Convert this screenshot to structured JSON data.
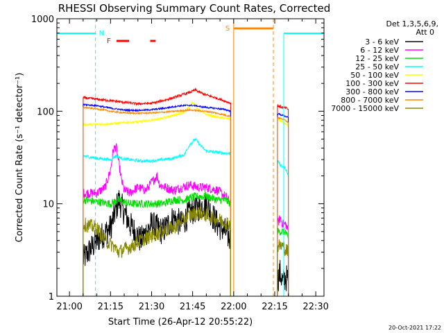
{
  "chart_data": {
    "type": "line",
    "title": "RHESSI Observing Summary Count Rates, Corrected",
    "xlabel": "Start Time (26-Apr-12 20:55:22)",
    "ylabel": "Corrected Count Rate (s⁻¹ detector⁻¹)",
    "y_scale": "log",
    "ylim": [
      1,
      1000
    ],
    "xlim_minutes": [
      55.4,
      153.0
    ],
    "x_ticks": [
      "21:00",
      "21:15",
      "21:30",
      "21:45",
      "22:00",
      "22:15",
      "22:30"
    ],
    "x_tick_minutes": [
      60,
      75,
      90,
      105,
      120,
      135,
      150
    ],
    "y_ticks": [
      "1",
      "10",
      "100",
      "1000"
    ],
    "y_tick_values": [
      1,
      10,
      100,
      1000
    ],
    "legend_header": [
      "Det 1,3,5,6,9,",
      "Att 0"
    ],
    "legend_position": "right",
    "footer_date": "20-Oct-2021 17:22",
    "flags": {
      "N_label": "N",
      "F_label": "F",
      "S_label": "S",
      "N_color": "#00ffff",
      "F_color": "#ff0000",
      "S_color": "#ff8800",
      "night": [
        [
          55.4,
          69.5
        ],
        [
          138.3,
          153.0
        ]
      ],
      "flare_bars": [
        [
          77.2,
          81.8
        ],
        [
          89.5,
          91.5
        ]
      ],
      "saa": [
        120.0,
        134.5
      ],
      "data_gaps": [
        [
          55.4,
          65.0
        ],
        [
          120.0,
          136.0
        ]
      ]
    },
    "series": [
      {
        "name": "3 - 6 keV",
        "color": "#000000",
        "segments": [
          {
            "x": [
              65,
              70,
              75,
              78,
              82,
              86,
              90,
              94,
              98,
              101,
              104,
              107,
              110,
              114,
              117,
              119
            ],
            "y": [
              2.5,
              4,
              5.5,
              11,
              6,
              4,
              6,
              5,
              7,
              6,
              8,
              9,
              10,
              6,
              5,
              4
            ]
          },
          {
            "x": [
              136,
              137,
              138,
              139,
              140
            ],
            "y": [
              1.5,
              1.8,
              1.4,
              1.6,
              1.5
            ]
          }
        ]
      },
      {
        "name": "6 - 12 keV",
        "color": "#ff00ff",
        "segments": [
          {
            "x": [
              65,
              70,
              73,
              75,
              76,
              77,
              78,
              79,
              80,
              82,
              85,
              88,
              90,
              92,
              93,
              95,
              98,
              101,
              104,
              107,
              110,
              114,
              117,
              119
            ],
            "y": [
              13,
              13,
              15,
              23,
              38,
              42,
              28,
              18,
              14,
              13,
              15,
              14,
              17,
              20,
              16,
              15,
              14,
              15,
              16,
              15,
              15,
              14,
              12,
              10
            ]
          },
          {
            "x": [
              136,
              137,
              138,
              139,
              140
            ],
            "y": [
              6,
              7,
              6,
              6,
              5
            ]
          }
        ]
      },
      {
        "name": "12 - 25 keV",
        "color": "#00dd00",
        "segments": [
          {
            "x": [
              65,
              70,
              75,
              78,
              82,
              86,
              90,
              94,
              98,
              102,
              106,
              110,
              114,
              117,
              119
            ],
            "y": [
              11,
              10.5,
              10,
              11,
              10,
              10,
              10,
              10,
              11,
              11,
              12,
              12,
              11,
              11,
              10
            ]
          },
          {
            "x": [
              136,
              137,
              138,
              139,
              140
            ],
            "y": [
              5,
              5,
              5,
              5,
              4
            ]
          }
        ]
      },
      {
        "name": "25 - 50 keV",
        "color": "#00ffff",
        "segments": [
          {
            "x": [
              65,
              70,
              75,
              77,
              79,
              82,
              86,
              90,
              94,
              98,
              102,
              104,
              106,
              108,
              110,
              114,
              117,
              119
            ],
            "y": [
              33,
              31,
              30,
              33,
              31,
              30,
              29,
              29,
              30,
              31,
              34,
              44,
              50,
              42,
              37,
              36,
              35,
              35
            ]
          },
          {
            "x": [
              136,
              137,
              138,
              139,
              140
            ],
            "y": [
              30,
              26,
              25,
              24,
              20
            ]
          }
        ]
      },
      {
        "name": "50 - 100 keV",
        "color": "#ffff00",
        "segments": [
          {
            "x": [
              65,
              70,
              75,
              80,
              85,
              90,
              95,
              98,
              101,
              103,
              105,
              107,
              110,
              114,
              117,
              119
            ],
            "y": [
              72,
              72,
              73,
              75,
              77,
              80,
              85,
              90,
              95,
              105,
              125,
              105,
              92,
              86,
              84,
              82
            ]
          },
          {
            "x": [
              136,
              137,
              138,
              139,
              140
            ],
            "y": [
              85,
              80,
              75,
              73,
              70
            ]
          }
        ]
      },
      {
        "name": "100 - 300 keV",
        "color": "#ff0000",
        "segments": [
          {
            "x": [
              65,
              70,
              75,
              80,
              85,
              90,
              95,
              98,
              101,
              104,
              106,
              108,
              110,
              114,
              117,
              119
            ],
            "y": [
              140,
              135,
              130,
              125,
              120,
              122,
              132,
              140,
              150,
              160,
              170,
              158,
              150,
              138,
              128,
              122
            ]
          },
          {
            "x": [
              136,
              137,
              138,
              139,
              140
            ],
            "y": [
              115,
              112,
              110,
              108,
              105
            ]
          }
        ]
      },
      {
        "name": "300 - 800 keV",
        "color": "#0000ff",
        "segments": [
          {
            "x": [
              65,
              70,
              75,
              80,
              85,
              90,
              95,
              98,
              101,
              104,
              106,
              108,
              110,
              114,
              117,
              119
            ],
            "y": [
              118,
              115,
              108,
              103,
              102,
              104,
              108,
              112,
              115,
              116,
              115,
              112,
              110,
              107,
              104,
              100
            ]
          },
          {
            "x": [
              136,
              137,
              138,
              139,
              140
            ],
            "y": [
              95,
              92,
              90,
              88,
              85
            ]
          }
        ]
      },
      {
        "name": "800 - 7000 keV",
        "color": "#ff8800",
        "segments": [
          {
            "x": [
              65,
              70,
              75,
              80,
              85,
              90,
              95,
              100,
              104,
              108,
              112,
              116,
              119
            ],
            "y": [
              110,
              106,
              100,
              96,
              95,
              96,
              98,
              101,
              103,
              101,
              98,
              92,
              88
            ]
          },
          {
            "x": [
              136,
              137,
              138,
              139,
              140
            ],
            "y": [
              86,
              84,
              82,
              80,
              75
            ]
          }
        ]
      },
      {
        "name": "7000 - 15000 keV",
        "color": "#888800",
        "segments": [
          {
            "x": [
              65,
              70,
              73,
              76,
              78,
              80,
              83,
              86,
              90,
              94,
              98,
              101,
              104,
              107,
              110,
              113,
              116,
              119
            ],
            "y": [
              6,
              5.5,
              4,
              3.5,
              3,
              3.2,
              3.5,
              4,
              4.5,
              5,
              5.5,
              6.5,
              7.5,
              8,
              7.5,
              7,
              6.5,
              6
            ]
          },
          {
            "x": [
              136,
              137,
              138,
              139,
              140
            ],
            "y": [
              3.5,
              3.5,
              3.5,
              3.2,
              3.0
            ]
          }
        ]
      }
    ]
  }
}
